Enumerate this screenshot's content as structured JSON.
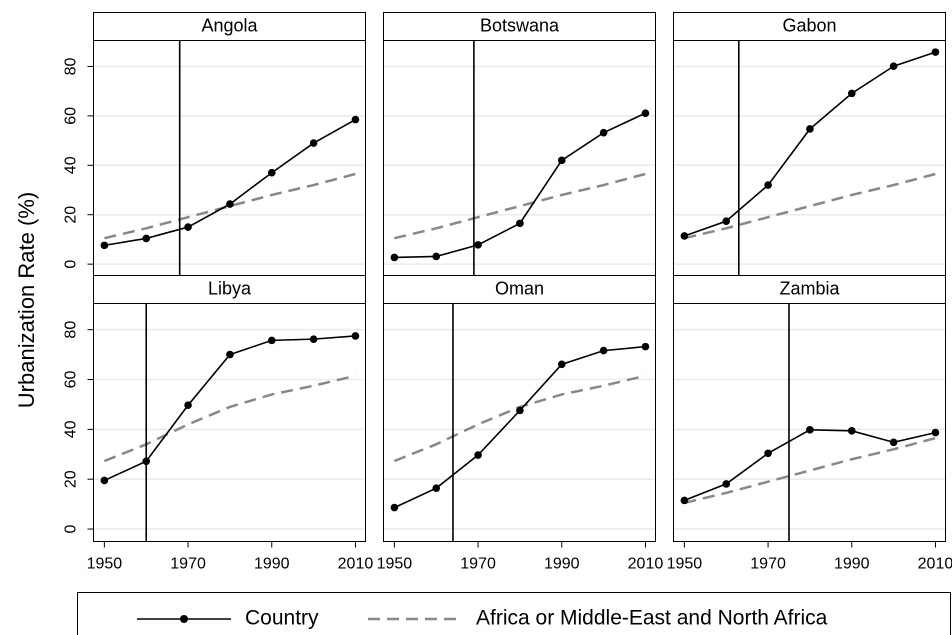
{
  "ylabel": "Urbanization Rate (%)",
  "legend": [
    {
      "name": "Country",
      "color": "#000000",
      "style": "solid"
    },
    {
      "name": "Africa or Middle-East and North Africa",
      "color": "#888888",
      "style": "dashed"
    }
  ],
  "chart_data": [
    {
      "type": "line",
      "title": "Angola",
      "x": [
        1950,
        1960,
        1970,
        1980,
        1990,
        2000,
        2010
      ],
      "series": [
        {
          "color": "#000000",
          "style": "solid",
          "values": [
            7.6,
            10.4,
            15,
            24.3,
            37,
            49,
            58.5
          ]
        },
        {
          "color": "#888888",
          "style": "dashed",
          "values": [
            10.5,
            14.5,
            19,
            23.5,
            28,
            32,
            36.5
          ]
        }
      ],
      "vline": 1968,
      "xlim": [
        1947.4,
        2012.4
      ],
      "ylim": [
        -5,
        90.5
      ],
      "yticks": [
        0,
        20,
        40,
        60,
        80
      ],
      "grid": true
    },
    {
      "type": "line",
      "title": "Botswana",
      "x": [
        1950,
        1960,
        1970,
        1980,
        1990,
        2000,
        2010
      ],
      "series": [
        {
          "color": "#000000",
          "style": "solid",
          "values": [
            2.7,
            3.1,
            7.8,
            16.5,
            42,
            53.2,
            61.1
          ]
        },
        {
          "color": "#888888",
          "style": "dashed",
          "values": [
            10.5,
            14.5,
            19,
            23.5,
            28,
            32,
            36.5
          ]
        }
      ],
      "vline": 1969,
      "xlim": [
        1947.4,
        2012.4
      ],
      "ylim": [
        -5,
        90.5
      ],
      "grid": true
    },
    {
      "type": "line",
      "title": "Gabon",
      "x": [
        1950,
        1960,
        1970,
        1980,
        1990,
        2000,
        2010
      ],
      "series": [
        {
          "color": "#000000",
          "style": "solid",
          "values": [
            11.4,
            17.4,
            32,
            54.7,
            69.1,
            80.1,
            85.8
          ]
        },
        {
          "color": "#888888",
          "style": "dashed",
          "values": [
            10.5,
            14.5,
            19,
            23.5,
            28,
            32,
            36.5
          ]
        }
      ],
      "vline": 1963,
      "xlim": [
        1947.4,
        2012.4
      ],
      "ylim": [
        -5,
        90.5
      ],
      "grid": true
    },
    {
      "type": "line",
      "title": "Libya",
      "x": [
        1950,
        1960,
        1970,
        1980,
        1990,
        2000,
        2010
      ],
      "series": [
        {
          "color": "#000000",
          "style": "solid",
          "values": [
            19.5,
            27.2,
            49.7,
            70,
            75.7,
            76.2,
            77.5
          ]
        },
        {
          "color": "#888888",
          "style": "dashed",
          "values": [
            27.3,
            34,
            42,
            49,
            54,
            57.5,
            61.5
          ]
        }
      ],
      "vline": 1960,
      "xlim": [
        1947.4,
        2012.4
      ],
      "ylim": [
        -5,
        90.5
      ],
      "yticks": [
        0,
        20,
        40,
        60,
        80
      ],
      "xticks": [
        1950,
        1970,
        1990,
        2010
      ],
      "grid": true
    },
    {
      "type": "line",
      "title": "Oman",
      "x": [
        1950,
        1960,
        1970,
        1980,
        1990,
        2000,
        2010
      ],
      "series": [
        {
          "color": "#000000",
          "style": "solid",
          "values": [
            8.6,
            16.4,
            29.7,
            47.6,
            66.1,
            71.6,
            73.2
          ]
        },
        {
          "color": "#888888",
          "style": "dashed",
          "values": [
            27.3,
            34,
            42,
            49,
            54,
            57.5,
            61.5
          ]
        }
      ],
      "vline": 1964,
      "xlim": [
        1947.4,
        2012.4
      ],
      "ylim": [
        -5,
        90.5
      ],
      "xticks": [
        1950,
        1970,
        1990,
        2010
      ],
      "grid": true
    },
    {
      "type": "line",
      "title": "Zambia",
      "x": [
        1950,
        1960,
        1970,
        1980,
        1990,
        2000,
        2010
      ],
      "series": [
        {
          "color": "#000000",
          "style": "solid",
          "values": [
            11.5,
            18.1,
            30.4,
            39.8,
            39.4,
            34.8,
            38.7
          ]
        },
        {
          "color": "#888888",
          "style": "dashed",
          "values": [
            10.5,
            14.5,
            19,
            23.5,
            28,
            32,
            36.5
          ]
        }
      ],
      "vline": 1975,
      "xlim": [
        1947.4,
        2012.4
      ],
      "ylim": [
        -5,
        90.5
      ],
      "xticks": [
        1950,
        1970,
        1990,
        2010
      ],
      "grid": true
    }
  ]
}
